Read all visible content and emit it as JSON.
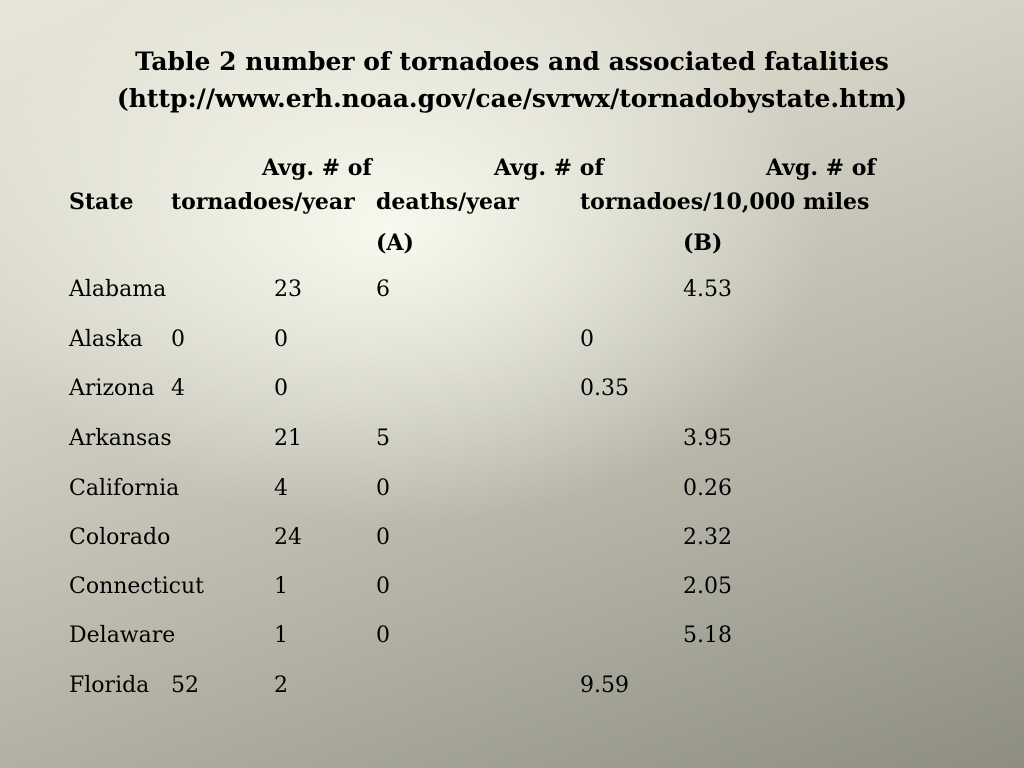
{
  "title": {
    "line1": "Table 2 number of tornadoes and associated fatalities",
    "line2": "(http://www.erh.noaa.gov/cae/svrwx/tornadobystate.htm)"
  },
  "header": {
    "avg_of_1": "Avg. # of",
    "avg_of_2": "Avg. # of",
    "avg_of_3": "Avg. # of",
    "state": "State",
    "tornadoes_year": "tornadoes/year",
    "deaths_year": "deaths/year",
    "tornadoes_miles": "tornadoes/10,000 miles",
    "note_a": "(A)",
    "note_b": "(B)"
  },
  "rows": [
    {
      "state": "Alabama",
      "tornadoes": "23",
      "deaths": "6",
      "per_miles": "4.53"
    },
    {
      "state": "Alaska",
      "tornadoes": "0",
      "deaths": "0",
      "per_miles": "0"
    },
    {
      "state": "Arizona",
      "tornadoes": "4",
      "deaths": "0",
      "per_miles": "0.35"
    },
    {
      "state": "Arkansas",
      "tornadoes": "21",
      "deaths": "5",
      "per_miles": "3.95"
    },
    {
      "state": "California",
      "tornadoes": "4",
      "deaths": "0",
      "per_miles": "0.26"
    },
    {
      "state": "Colorado",
      "tornadoes": "24",
      "deaths": "0",
      "per_miles": "2.32"
    },
    {
      "state": "Connecticut",
      "tornadoes": "1",
      "deaths": "0",
      "per_miles": "2.05"
    },
    {
      "state": "Delaware",
      "tornadoes": "1",
      "deaths": "0",
      "per_miles": "5.18"
    },
    {
      "state": "Florida",
      "tornadoes": "52",
      "deaths": "2",
      "per_miles": "9.59"
    }
  ]
}
